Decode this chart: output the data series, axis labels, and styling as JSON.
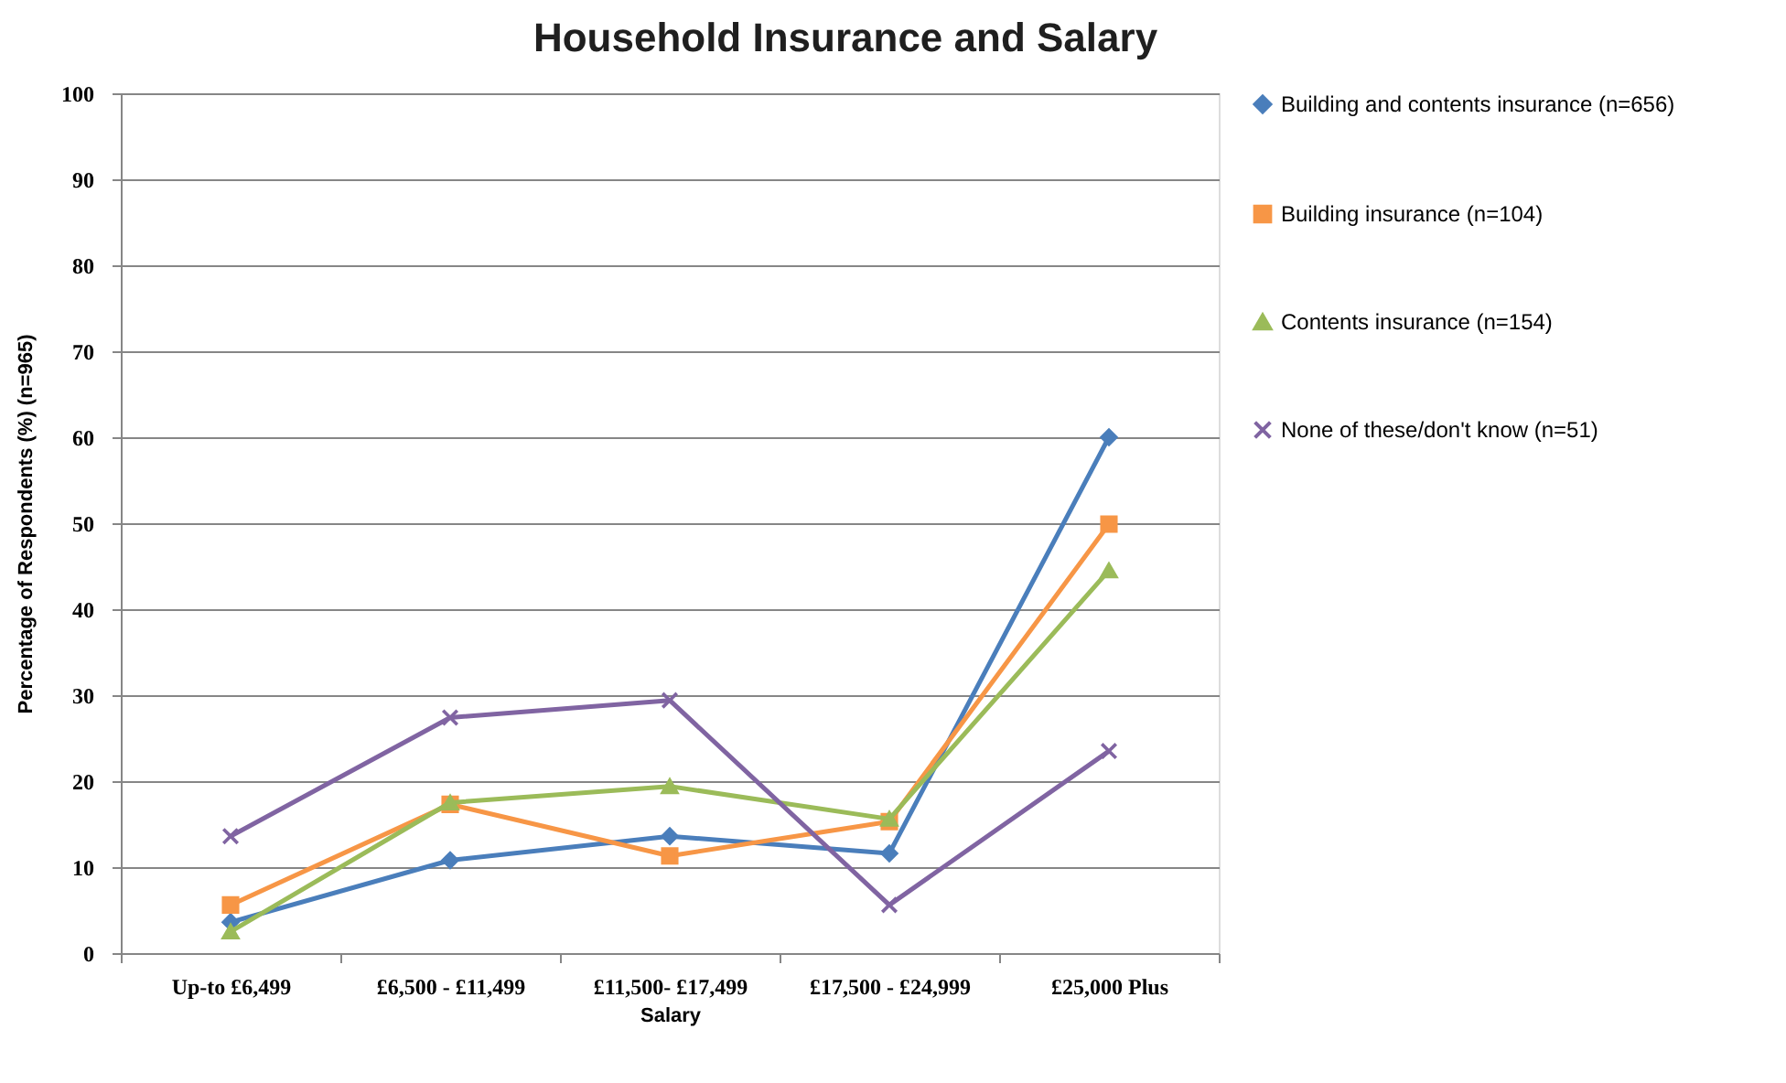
{
  "chart_data": {
    "type": "line",
    "title": "Household Insurance and Salary",
    "xlabel": "Salary",
    "ylabel": "Percentage of Respondents (%) (n=965)",
    "categories": [
      "Up-to £6,499",
      "£6,500 - £11,499",
      "£11,500- £17,499",
      "£17,500 - £24,999",
      "£25,000 Plus"
    ],
    "series": [
      {
        "name": "Building and contents insurance (n=656)",
        "color": "#4a7ebb",
        "marker": "diamond",
        "values": [
          3.6,
          10.8,
          13.6,
          11.6,
          60
        ]
      },
      {
        "name": "Building insurance (n=104)",
        "color": "#f79646",
        "marker": "square",
        "values": [
          5.6,
          17.3,
          11.3,
          15.3,
          49.9
        ]
      },
      {
        "name": "Contents insurance (n=154)",
        "color": "#9bbb59",
        "marker": "triangle",
        "values": [
          2.5,
          17.5,
          19.4,
          15.6,
          44.5
        ]
      },
      {
        "name": "None of these/don't know (n=51)",
        "color": "#8064a2",
        "marker": "cross",
        "values": [
          13.6,
          27.4,
          29.4,
          5.6,
          23.5
        ]
      }
    ],
    "ylim": [
      0,
      100
    ],
    "yticks": [
      0,
      10,
      20,
      30,
      40,
      50,
      60,
      70,
      80,
      90,
      100
    ],
    "grid": "y",
    "legend": "right"
  }
}
